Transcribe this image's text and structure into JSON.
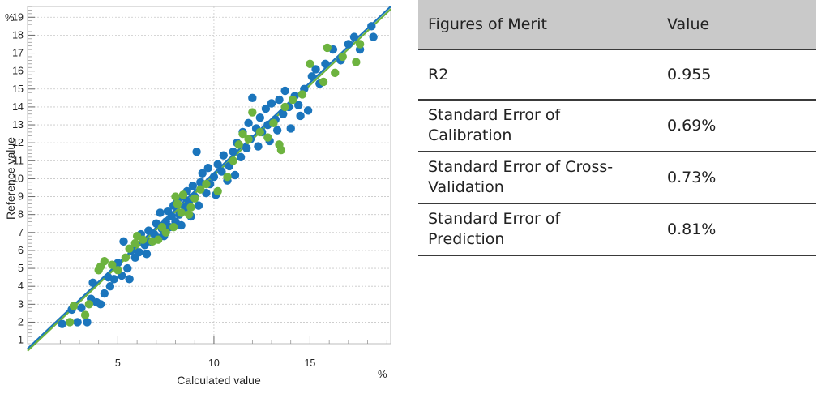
{
  "chart_data": {
    "type": "scatter",
    "xlabel": "Calculated value",
    "ylabel": "Reference value",
    "x_unit": "%",
    "y_unit": "%",
    "xlim": [
      0.3,
      19.2
    ],
    "ylim": [
      0.8,
      19.6
    ],
    "x_ticks": [
      5,
      10,
      15
    ],
    "y_ticks": [
      1,
      2,
      3,
      4,
      5,
      6,
      7,
      8,
      9,
      10,
      11,
      12,
      13,
      14,
      15,
      16,
      17,
      18,
      19
    ],
    "grid": true,
    "series": [
      {
        "color": "#1b75bc",
        "points": [
          [
            2.1,
            1.9
          ],
          [
            2.6,
            2.7
          ],
          [
            2.9,
            2.0
          ],
          [
            3.1,
            2.8
          ],
          [
            3.4,
            2.0
          ],
          [
            3.6,
            3.3
          ],
          [
            3.7,
            4.2
          ],
          [
            3.9,
            3.1
          ],
          [
            4.1,
            3.0
          ],
          [
            4.3,
            3.6
          ],
          [
            4.5,
            4.5
          ],
          [
            4.6,
            4.0
          ],
          [
            4.8,
            4.4
          ],
          [
            5.0,
            5.3
          ],
          [
            5.2,
            4.6
          ],
          [
            5.3,
            6.5
          ],
          [
            5.5,
            5.0
          ],
          [
            5.6,
            4.4
          ],
          [
            5.7,
            6.0
          ],
          [
            5.9,
            5.6
          ],
          [
            6.1,
            5.9
          ],
          [
            6.2,
            6.9
          ],
          [
            6.4,
            6.3
          ],
          [
            6.5,
            5.8
          ],
          [
            6.6,
            7.1
          ],
          [
            6.7,
            6.5
          ],
          [
            6.9,
            6.9
          ],
          [
            7.0,
            7.5
          ],
          [
            7.1,
            6.7
          ],
          [
            7.2,
            8.1
          ],
          [
            7.3,
            7.2
          ],
          [
            7.4,
            6.8
          ],
          [
            7.5,
            7.6
          ],
          [
            7.6,
            8.2
          ],
          [
            7.7,
            7.3
          ],
          [
            7.8,
            7.9
          ],
          [
            7.9,
            8.5
          ],
          [
            8.0,
            7.6
          ],
          [
            8.1,
            8.8
          ],
          [
            8.2,
            8.0
          ],
          [
            8.3,
            7.4
          ],
          [
            8.4,
            9.0
          ],
          [
            8.5,
            8.4
          ],
          [
            8.6,
            9.3
          ],
          [
            8.7,
            8.7
          ],
          [
            8.8,
            7.9
          ],
          [
            8.9,
            9.6
          ],
          [
            9.0,
            9.0
          ],
          [
            9.1,
            11.5
          ],
          [
            9.2,
            8.5
          ],
          [
            9.3,
            9.8
          ],
          [
            9.4,
            10.3
          ],
          [
            9.6,
            9.2
          ],
          [
            9.7,
            10.6
          ],
          [
            9.8,
            9.7
          ],
          [
            10.0,
            10.1
          ],
          [
            10.1,
            9.1
          ],
          [
            10.2,
            10.8
          ],
          [
            10.4,
            10.4
          ],
          [
            10.5,
            11.3
          ],
          [
            10.7,
            9.9
          ],
          [
            10.8,
            10.7
          ],
          [
            11.0,
            11.5
          ],
          [
            11.1,
            10.2
          ],
          [
            11.2,
            12.0
          ],
          [
            11.4,
            11.2
          ],
          [
            11.5,
            12.6
          ],
          [
            11.7,
            11.7
          ],
          [
            11.8,
            13.1
          ],
          [
            11.9,
            12.2
          ],
          [
            12.0,
            14.5
          ],
          [
            12.2,
            12.8
          ],
          [
            12.3,
            11.8
          ],
          [
            12.4,
            13.4
          ],
          [
            12.5,
            12.6
          ],
          [
            12.7,
            13.9
          ],
          [
            12.8,
            13.0
          ],
          [
            12.9,
            12.1
          ],
          [
            13.0,
            14.2
          ],
          [
            13.2,
            13.3
          ],
          [
            13.3,
            12.7
          ],
          [
            13.4,
            14.4
          ],
          [
            13.6,
            13.6
          ],
          [
            13.7,
            14.9
          ],
          [
            13.9,
            14.0
          ],
          [
            14.0,
            12.8
          ],
          [
            14.2,
            14.6
          ],
          [
            14.4,
            14.1
          ],
          [
            14.5,
            13.5
          ],
          [
            14.7,
            15.0
          ],
          [
            14.9,
            13.8
          ],
          [
            15.1,
            15.7
          ],
          [
            15.3,
            16.1
          ],
          [
            15.5,
            15.3
          ],
          [
            15.8,
            16.4
          ],
          [
            16.2,
            17.2
          ],
          [
            16.6,
            16.6
          ],
          [
            17.0,
            17.5
          ],
          [
            17.3,
            17.9
          ],
          [
            17.6,
            17.2
          ],
          [
            18.2,
            18.5
          ],
          [
            18.3,
            17.9
          ]
        ]
      },
      {
        "color": "#6db33f",
        "points": [
          [
            2.5,
            2.0
          ],
          [
            2.7,
            2.9
          ],
          [
            3.3,
            2.4
          ],
          [
            3.5,
            3.0
          ],
          [
            4.0,
            4.9
          ],
          [
            4.1,
            5.1
          ],
          [
            4.3,
            5.4
          ],
          [
            4.7,
            5.2
          ],
          [
            5.0,
            4.9
          ],
          [
            5.4,
            5.6
          ],
          [
            5.6,
            6.1
          ],
          [
            5.9,
            6.4
          ],
          [
            6.0,
            6.8
          ],
          [
            6.3,
            6.6
          ],
          [
            6.8,
            6.5
          ],
          [
            7.1,
            6.6
          ],
          [
            7.3,
            7.3
          ],
          [
            7.5,
            7.0
          ],
          [
            7.9,
            7.3
          ],
          [
            8.0,
            9.0
          ],
          [
            8.1,
            8.6
          ],
          [
            8.3,
            8.1
          ],
          [
            8.4,
            9.1
          ],
          [
            8.7,
            8.0
          ],
          [
            8.8,
            8.4
          ],
          [
            9.0,
            8.9
          ],
          [
            9.3,
            9.4
          ],
          [
            9.6,
            9.7
          ],
          [
            10.2,
            9.3
          ],
          [
            10.7,
            10.1
          ],
          [
            11.0,
            11.0
          ],
          [
            11.3,
            11.9
          ],
          [
            11.5,
            12.5
          ],
          [
            11.8,
            12.2
          ],
          [
            12.0,
            13.7
          ],
          [
            12.4,
            12.6
          ],
          [
            12.8,
            12.3
          ],
          [
            13.1,
            13.1
          ],
          [
            13.4,
            11.9
          ],
          [
            13.5,
            11.6
          ],
          [
            13.7,
            14.0
          ],
          [
            14.1,
            14.4
          ],
          [
            14.6,
            14.7
          ],
          [
            15.0,
            16.4
          ],
          [
            15.7,
            15.4
          ],
          [
            15.9,
            17.3
          ],
          [
            16.3,
            15.9
          ],
          [
            16.7,
            16.8
          ],
          [
            17.4,
            16.5
          ],
          [
            17.6,
            17.5
          ]
        ]
      }
    ],
    "regression_lines": [
      {
        "color": "#1b75bc",
        "from": [
          0.3,
          0.52
        ],
        "to": [
          19.2,
          19.6
        ]
      },
      {
        "color": "#6db33f",
        "from": [
          0.3,
          0.4
        ],
        "to": [
          19.2,
          19.45
        ]
      }
    ]
  },
  "table": {
    "headers": [
      "Figures of Merit",
      "Value"
    ],
    "rows": [
      {
        "metric": "R2",
        "value": "0.955"
      },
      {
        "metric_line1": "Standard Error of",
        "metric_line2": "Calibration",
        "value": "0.69%"
      },
      {
        "metric_line1": "Standard Error of Cross-",
        "metric_line2": "Validation",
        "value": "0.73%"
      },
      {
        "metric_line1": "Standard Error of",
        "metric_line2": "Prediction",
        "value": "0.81%"
      }
    ]
  }
}
